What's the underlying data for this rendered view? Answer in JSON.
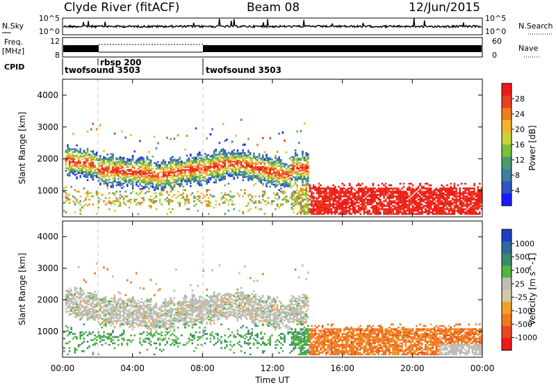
{
  "header": {
    "station": "Clyde River (fitACF)",
    "beam": "Beam 08",
    "date": "12/Jun/2015"
  },
  "ancillary": {
    "nsky_label": "N.Sky",
    "nsky_ticks": [
      "10^5",
      "10^0"
    ],
    "nsearch_label": "N.Search",
    "nsearch_ticks": [
      "10^5",
      "10^0"
    ],
    "freq_label": "Freq.",
    "freq_unit": "[MHz]",
    "freq_ticks": [
      "12",
      "8"
    ],
    "nave_label": "Nave",
    "nave_ticks": [
      "60",
      "0"
    ],
    "cpid_label": "CPID",
    "cpid_segments": [
      {
        "label": "twofsound 3503",
        "start_hour": 0
      },
      {
        "label": "rbsp 200",
        "start_hour": 2
      },
      {
        "label": "twofsound 3503",
        "start_hour": 8
      }
    ]
  },
  "chart_data": [
    {
      "type": "heatmap",
      "name": "power",
      "ylabel": "Slant Range [km]",
      "yticks": [
        "1000",
        "2000",
        "3000",
        "4000"
      ],
      "ylim": [
        180,
        4500
      ],
      "xlim": [
        0,
        24
      ],
      "colorbar": {
        "label": "Power [dB]",
        "ticks": [
          "4",
          "8",
          "12",
          "16",
          "20",
          "24",
          "28"
        ],
        "colors": [
          "#1a1aff",
          "#2f55c2",
          "#3e7ea0",
          "#4a9a6f",
          "#7bbf3a",
          "#c8d23a",
          "#f2b42a",
          "#f07d20",
          "#e8421e",
          "#ee1a16"
        ]
      },
      "regions": [
        {
          "x": [
            0,
            13.5
          ],
          "y": [
            1500,
            2400
          ],
          "value": "12-24 dB"
        },
        {
          "x": [
            13.5,
            24
          ],
          "y": [
            200,
            1200
          ],
          "value": "24-32 dB"
        }
      ]
    },
    {
      "type": "heatmap",
      "name": "velocity",
      "ylabel": "Slant Range [km]",
      "yticks": [
        "1000",
        "2000",
        "3000",
        "4000"
      ],
      "ylim": [
        180,
        4500
      ],
      "xlim": [
        0,
        24
      ],
      "colorbar": {
        "label": "Velocity [m s^-1]",
        "ticks": [
          "1000",
          "500",
          "100",
          "25",
          "-25",
          "-100",
          "-500",
          "-1000"
        ],
        "colors": [
          "#1b3fbf",
          "#2c6a9e",
          "#3a8a6c",
          "#52b443",
          "#bdbdb6",
          "#d2c8a4",
          "#f3a02a",
          "#f07a20",
          "#ea4620",
          "#ee1a16"
        ]
      },
      "regions": [
        {
          "x": [
            0,
            13.5
          ],
          "y": [
            1500,
            2400
          ],
          "value": "ground scatter (-25 to 25)"
        },
        {
          "x": [
            13.5,
            24
          ],
          "y": [
            200,
            1200
          ],
          "value": "-100 to -500"
        }
      ]
    }
  ],
  "xaxis": {
    "label": "Time UT",
    "ticks": [
      "00:00",
      "04:00",
      "08:00",
      "12:00",
      "16:00",
      "20:00",
      "00:00"
    ]
  }
}
